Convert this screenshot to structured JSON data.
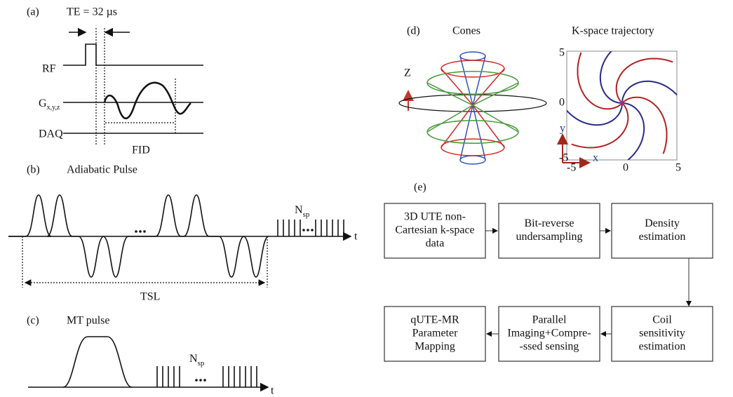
{
  "panel_a": {
    "label": "(a)",
    "te": "TE = 32 µs",
    "rf": "RF",
    "g": "G",
    "g_sub": "x,y,z",
    "daq": "DAQ",
    "fid": "FID"
  },
  "panel_b": {
    "label": "(b)",
    "title": "Adiabatic Pulse",
    "n": "N",
    "n_sub": "sp",
    "t": "t",
    "tsl": "TSL"
  },
  "panel_c": {
    "label": "(c)",
    "title": "MT pulse",
    "n": "N",
    "n_sub": "sp",
    "t": "t"
  },
  "panel_d": {
    "label": "(d)",
    "cones": "Cones",
    "trajectory": "K-space trajectory",
    "z": "Z",
    "y": "y",
    "x": "x",
    "yticks": [
      "5",
      "0",
      "-5"
    ],
    "xticks": [
      "-5",
      "0",
      "5"
    ]
  },
  "panel_e": {
    "label": "(e)",
    "boxes": [
      {
        "lines": [
          "3D UTE non-",
          "Cartesian k-space",
          "data"
        ]
      },
      {
        "lines": [
          "Bit-reverse",
          "undersampling"
        ]
      },
      {
        "lines": [
          "Density",
          "estimation"
        ]
      },
      {
        "lines": [
          "Coil",
          "sensitivity",
          "estimation"
        ]
      },
      {
        "lines": [
          "Parallel",
          "Imaging+Compre-",
          "-ssed sensing"
        ]
      },
      {
        "lines": [
          "qUTE-MR",
          "Parameter",
          "Mapping"
        ]
      }
    ]
  }
}
